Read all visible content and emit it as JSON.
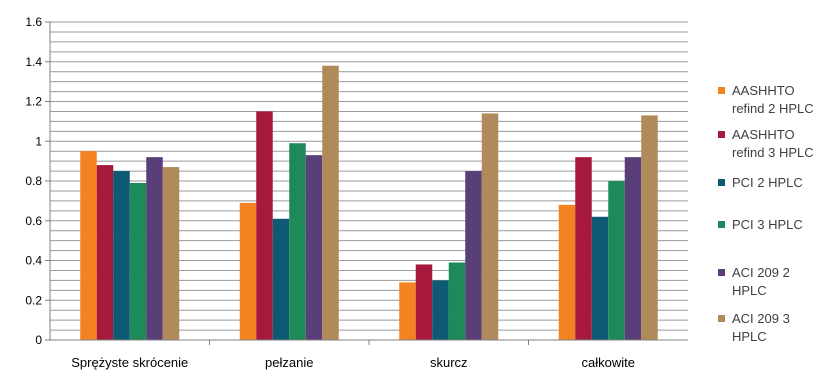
{
  "chart_data": {
    "type": "bar",
    "categories": [
      "Sprężyste skrócenie",
      "pełzanie",
      "skurcz",
      "całkowite"
    ],
    "series": [
      {
        "name": "AASHHTO refind 2 HPLC",
        "label_lines": [
          "AASHHTO",
          "refind 2 HPLC"
        ],
        "color": "#F58220",
        "values": [
          0.95,
          0.69,
          0.29,
          0.68
        ]
      },
      {
        "name": "AASHHTO refind 3 HPLC",
        "label_lines": [
          "AASHHTO",
          "refind 3 HPLC"
        ],
        "color": "#A6193C",
        "values": [
          0.88,
          1.15,
          0.38,
          0.92
        ]
      },
      {
        "name": "PCI 2 HPLC",
        "label_lines": [
          "PCI 2 HPLC"
        ],
        "color": "#0E5A74",
        "values": [
          0.85,
          0.61,
          0.3,
          0.62
        ]
      },
      {
        "name": "PCI 3 HPLC",
        "label_lines": [
          "PCI 3 HPLC"
        ],
        "color": "#1E8A5A",
        "values": [
          0.79,
          0.99,
          0.39,
          0.8
        ]
      },
      {
        "name": "ACI 209 2 HPLC",
        "label_lines": [
          "ACI 209 2",
          "HPLC"
        ],
        "color": "#5A3E78",
        "values": [
          0.92,
          0.93,
          0.85,
          0.92
        ]
      },
      {
        "name": "ACI 209 3 HPLC",
        "label_lines": [
          "ACI 209 3",
          "HPLC"
        ],
        "color": "#B08A5A",
        "values": [
          0.87,
          1.38,
          1.14,
          1.13
        ]
      }
    ],
    "y_ticks": [
      "0",
      "0.2",
      "0.4",
      "0.6",
      "0.8",
      "1",
      "1.2",
      "1.4",
      "1.6"
    ],
    "ylim": [
      0,
      1.6
    ],
    "minor_grid_step": 0.05,
    "grid": true,
    "legend_position": "right",
    "title": "",
    "xlabel": "",
    "ylabel": ""
  }
}
